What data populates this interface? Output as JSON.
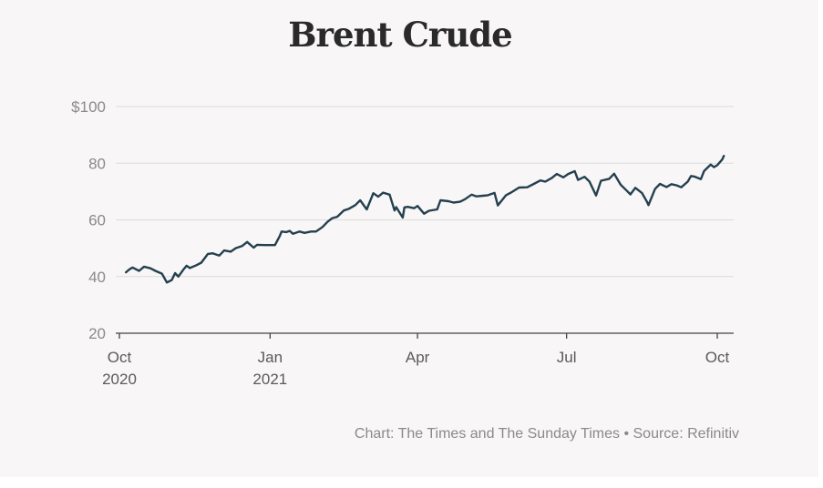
{
  "chart_data": {
    "type": "line",
    "title": "Brent Crude",
    "xlabel": "",
    "ylabel": "",
    "ylim": [
      20,
      100
    ],
    "y_ticks": [
      {
        "value": 100,
        "label": "$100"
      },
      {
        "value": 80,
        "label": "80"
      },
      {
        "value": 60,
        "label": "60"
      },
      {
        "value": 40,
        "label": "40"
      },
      {
        "value": 20,
        "label": "20"
      }
    ],
    "x_ticks": [
      {
        "date": "2020-10-01",
        "line1": "Oct",
        "line2": "2020"
      },
      {
        "date": "2021-01-01",
        "line1": "Jan",
        "line2": "2021"
      },
      {
        "date": "2021-04-01",
        "line1": "Apr",
        "line2": ""
      },
      {
        "date": "2021-07-01",
        "line1": "Jul",
        "line2": ""
      },
      {
        "date": "2021-10-01",
        "line1": "Oct",
        "line2": ""
      }
    ],
    "xlim": [
      "2020-10-01",
      "2021-10-05"
    ],
    "grid": true,
    "line_color": "#24404f",
    "series": [
      {
        "points": [
          [
            "2020-10-05",
            41.5
          ],
          [
            "2020-10-07",
            42.5
          ],
          [
            "2020-10-09",
            43.2
          ],
          [
            "2020-10-13",
            42.0
          ],
          [
            "2020-10-16",
            43.5
          ],
          [
            "2020-10-20",
            42.9
          ],
          [
            "2020-10-23",
            42.0
          ],
          [
            "2020-10-27",
            41.0
          ],
          [
            "2020-10-30",
            37.9
          ],
          [
            "2020-11-02",
            38.8
          ],
          [
            "2020-11-04",
            41.2
          ],
          [
            "2020-11-06",
            40.0
          ],
          [
            "2020-11-09",
            42.4
          ],
          [
            "2020-11-11",
            43.8
          ],
          [
            "2020-11-13",
            43.0
          ],
          [
            "2020-11-17",
            44.0
          ],
          [
            "2020-11-20",
            44.9
          ],
          [
            "2020-11-24",
            48.0
          ],
          [
            "2020-11-27",
            48.2
          ],
          [
            "2020-12-01",
            47.4
          ],
          [
            "2020-12-04",
            49.2
          ],
          [
            "2020-12-08",
            48.8
          ],
          [
            "2020-12-11",
            50.0
          ],
          [
            "2020-12-15",
            50.8
          ],
          [
            "2020-12-18",
            52.2
          ],
          [
            "2020-12-22",
            50.2
          ],
          [
            "2020-12-24",
            51.2
          ],
          [
            "2020-12-29",
            51.1
          ],
          [
            "2021-01-04",
            51.1
          ],
          [
            "2021-01-07",
            54.4
          ],
          [
            "2021-01-08",
            55.9
          ],
          [
            "2021-01-11",
            55.7
          ],
          [
            "2021-01-13",
            56.1
          ],
          [
            "2021-01-15",
            55.1
          ],
          [
            "2021-01-19",
            55.9
          ],
          [
            "2021-01-22",
            55.4
          ],
          [
            "2021-01-26",
            55.9
          ],
          [
            "2021-01-29",
            55.9
          ],
          [
            "2021-02-02",
            57.5
          ],
          [
            "2021-02-05",
            59.3
          ],
          [
            "2021-02-08",
            60.6
          ],
          [
            "2021-02-11",
            61.1
          ],
          [
            "2021-02-15",
            63.3
          ],
          [
            "2021-02-18",
            63.9
          ],
          [
            "2021-02-22",
            65.2
          ],
          [
            "2021-02-25",
            66.9
          ],
          [
            "2021-03-01",
            63.7
          ],
          [
            "2021-03-05",
            69.4
          ],
          [
            "2021-03-08",
            68.2
          ],
          [
            "2021-03-11",
            69.6
          ],
          [
            "2021-03-15",
            68.9
          ],
          [
            "2021-03-18",
            63.3
          ],
          [
            "2021-03-19",
            64.5
          ],
          [
            "2021-03-23",
            60.8
          ],
          [
            "2021-03-24",
            64.4
          ],
          [
            "2021-03-26",
            64.6
          ],
          [
            "2021-03-30",
            64.1
          ],
          [
            "2021-04-01",
            64.9
          ],
          [
            "2021-04-05",
            62.2
          ],
          [
            "2021-04-08",
            63.2
          ],
          [
            "2021-04-13",
            63.7
          ],
          [
            "2021-04-15",
            66.9
          ],
          [
            "2021-04-20",
            66.6
          ],
          [
            "2021-04-23",
            66.1
          ],
          [
            "2021-04-27",
            66.4
          ],
          [
            "2021-04-30",
            67.3
          ],
          [
            "2021-05-04",
            68.9
          ],
          [
            "2021-05-07",
            68.3
          ],
          [
            "2021-05-11",
            68.5
          ],
          [
            "2021-05-14",
            68.7
          ],
          [
            "2021-05-18",
            69.5
          ],
          [
            "2021-05-20",
            65.1
          ],
          [
            "2021-05-25",
            68.7
          ],
          [
            "2021-05-28",
            69.6
          ],
          [
            "2021-06-02",
            71.4
          ],
          [
            "2021-06-07",
            71.5
          ],
          [
            "2021-06-11",
            72.7
          ],
          [
            "2021-06-15",
            73.9
          ],
          [
            "2021-06-18",
            73.5
          ],
          [
            "2021-06-22",
            74.8
          ],
          [
            "2021-06-25",
            76.2
          ],
          [
            "2021-06-29",
            75.0
          ],
          [
            "2021-07-02",
            76.2
          ],
          [
            "2021-07-06",
            77.2
          ],
          [
            "2021-07-08",
            74.1
          ],
          [
            "2021-07-12",
            75.2
          ],
          [
            "2021-07-15",
            73.5
          ],
          [
            "2021-07-19",
            68.6
          ],
          [
            "2021-07-22",
            73.8
          ],
          [
            "2021-07-27",
            74.5
          ],
          [
            "2021-07-30",
            76.3
          ],
          [
            "2021-08-03",
            72.4
          ],
          [
            "2021-08-06",
            70.7
          ],
          [
            "2021-08-09",
            69.0
          ],
          [
            "2021-08-12",
            71.3
          ],
          [
            "2021-08-16",
            69.5
          ],
          [
            "2021-08-19",
            66.5
          ],
          [
            "2021-08-20",
            65.2
          ],
          [
            "2021-08-24",
            70.9
          ],
          [
            "2021-08-27",
            72.7
          ],
          [
            "2021-08-31",
            71.6
          ],
          [
            "2021-09-03",
            72.6
          ],
          [
            "2021-09-06",
            72.2
          ],
          [
            "2021-09-09",
            71.5
          ],
          [
            "2021-09-13",
            73.5
          ],
          [
            "2021-09-15",
            75.5
          ],
          [
            "2021-09-17",
            75.3
          ],
          [
            "2021-09-21",
            74.4
          ],
          [
            "2021-09-23",
            77.3
          ],
          [
            "2021-09-27",
            79.5
          ],
          [
            "2021-09-29",
            78.6
          ],
          [
            "2021-10-01",
            79.3
          ],
          [
            "2021-10-04",
            81.3
          ],
          [
            "2021-10-05",
            82.6
          ]
        ]
      }
    ]
  },
  "source": "Chart: The Times and The Sunday Times • Source: Refinitiv"
}
